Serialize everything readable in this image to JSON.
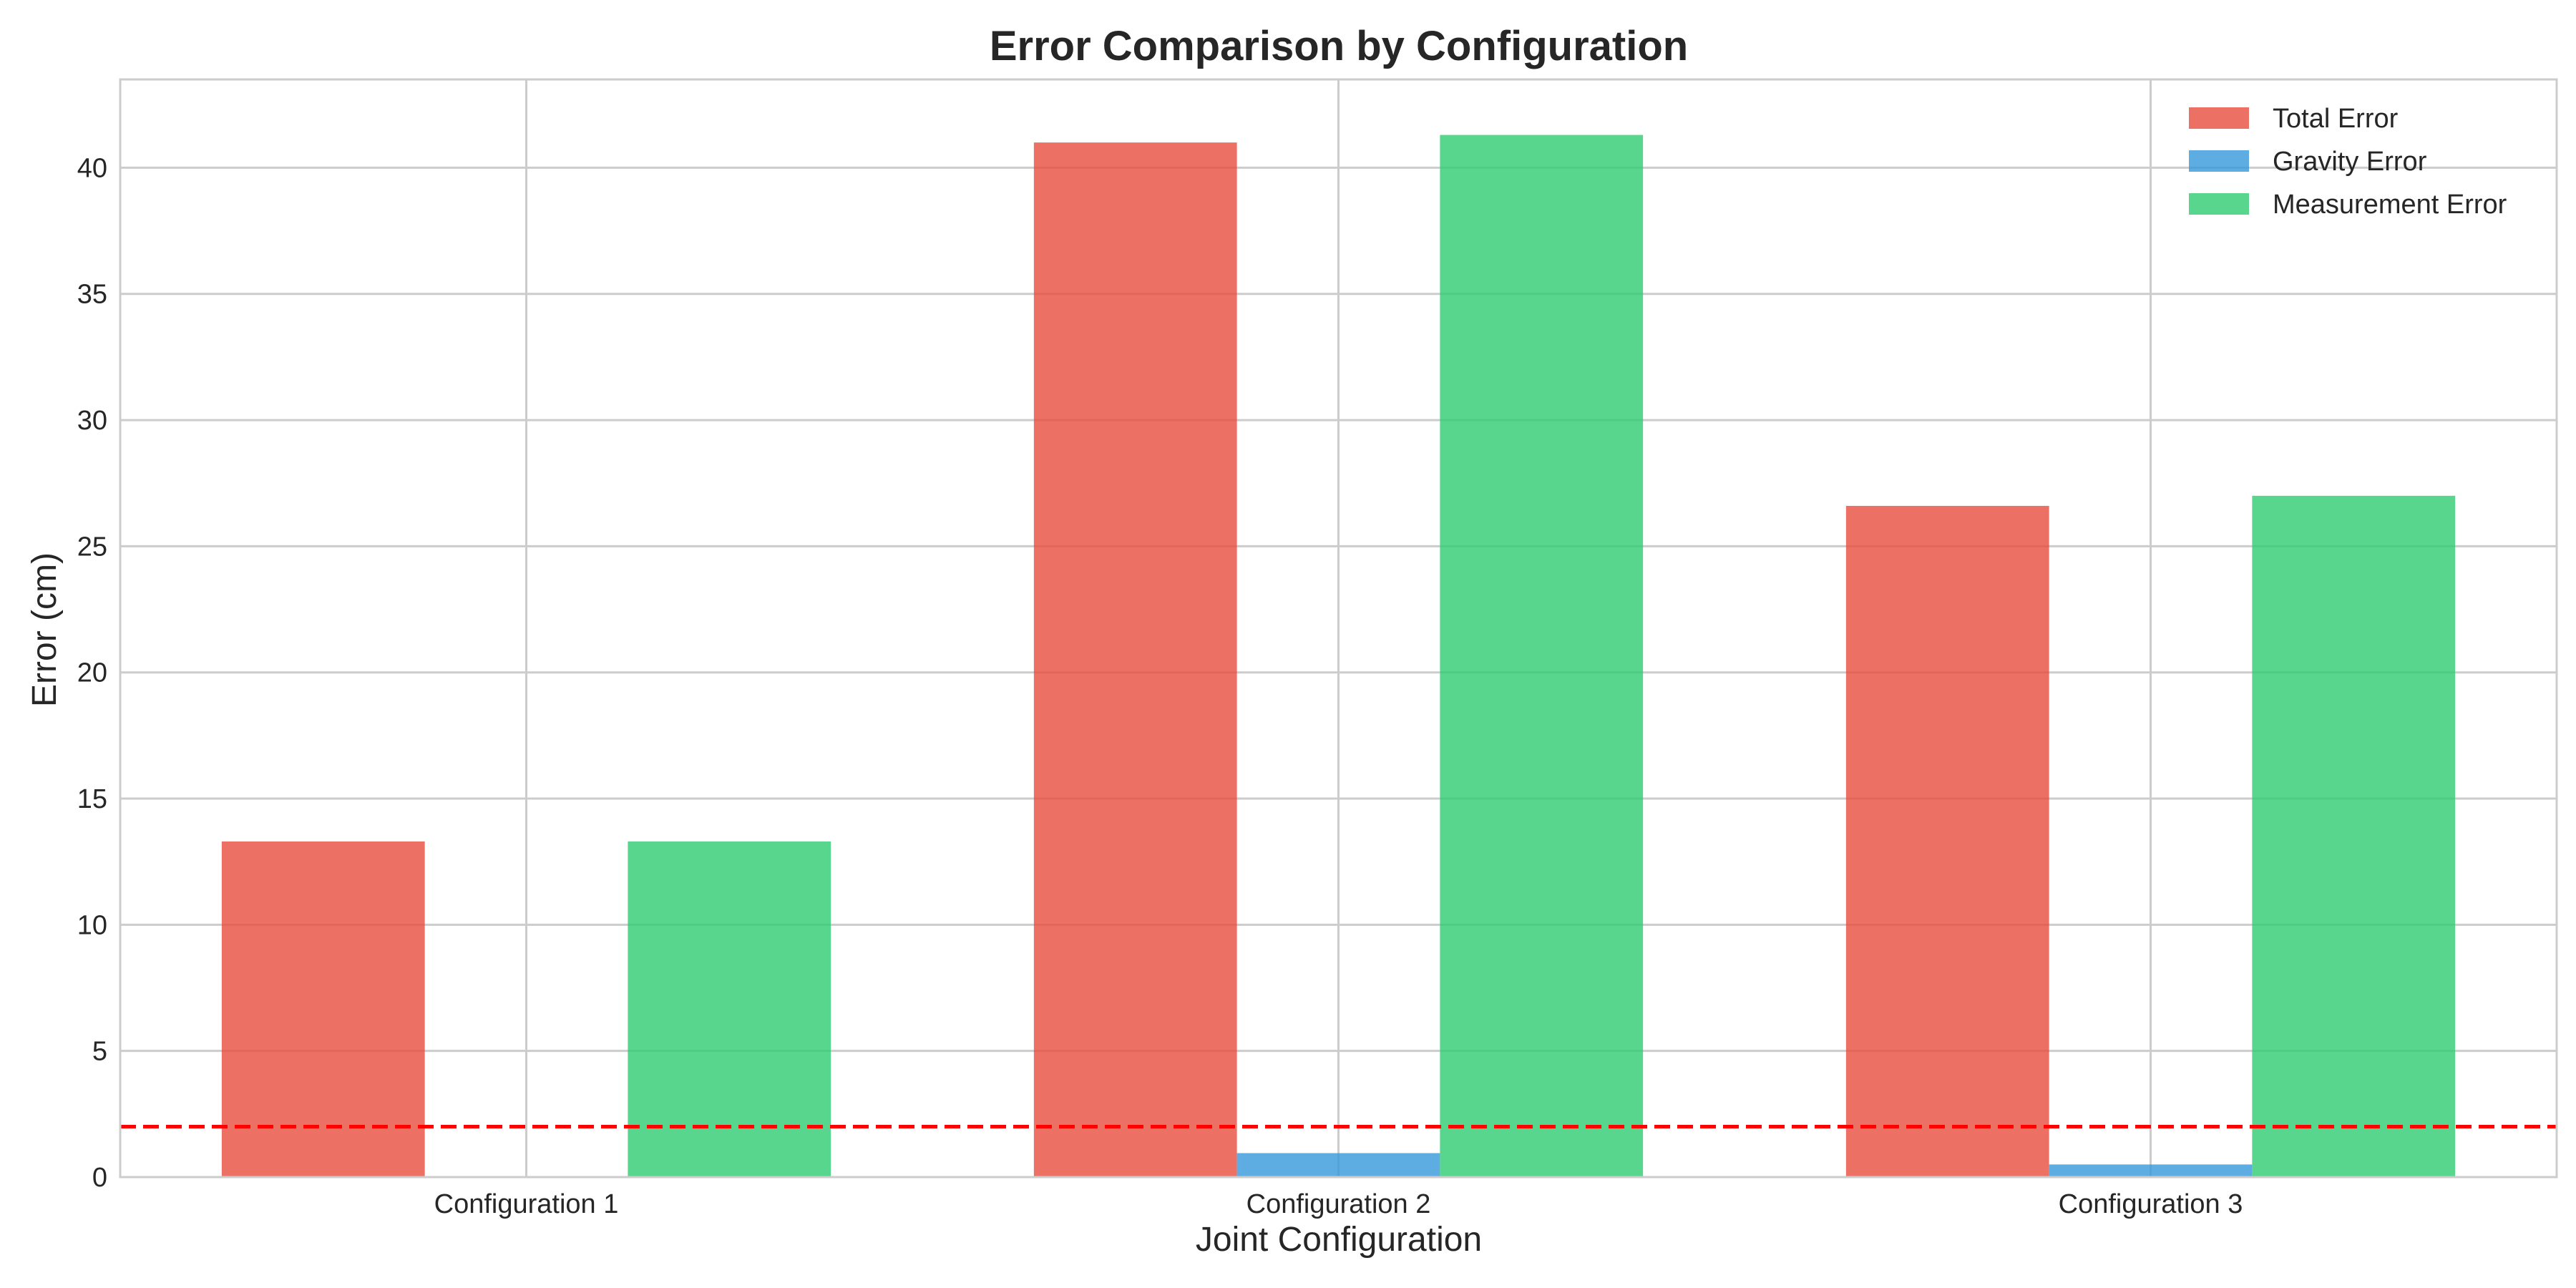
{
  "chart_data": {
    "type": "bar",
    "title": "Error Comparison by Configuration",
    "xlabel": "Joint Configuration",
    "ylabel": "Error (cm)",
    "categories": [
      "Configuration 1",
      "Configuration 2",
      "Configuration 3"
    ],
    "series": [
      {
        "name": "Total Error",
        "color": "#e74c3c",
        "values": [
          13.3,
          41.0,
          26.6
        ]
      },
      {
        "name": "Gravity Error",
        "color": "#3498db",
        "values": [
          0.0,
          0.95,
          0.5
        ]
      },
      {
        "name": "Measurement Error",
        "color": "#2ecc71",
        "values": [
          13.3,
          41.3,
          27.0
        ]
      }
    ],
    "ylim": [
      0,
      43.5
    ],
    "yticks": [
      0,
      5,
      10,
      15,
      20,
      25,
      30,
      35,
      40
    ],
    "reference_line": {
      "y": 2,
      "color": "#ff0000",
      "style": "dashed"
    },
    "grid": true,
    "legend_position": "top-right"
  }
}
